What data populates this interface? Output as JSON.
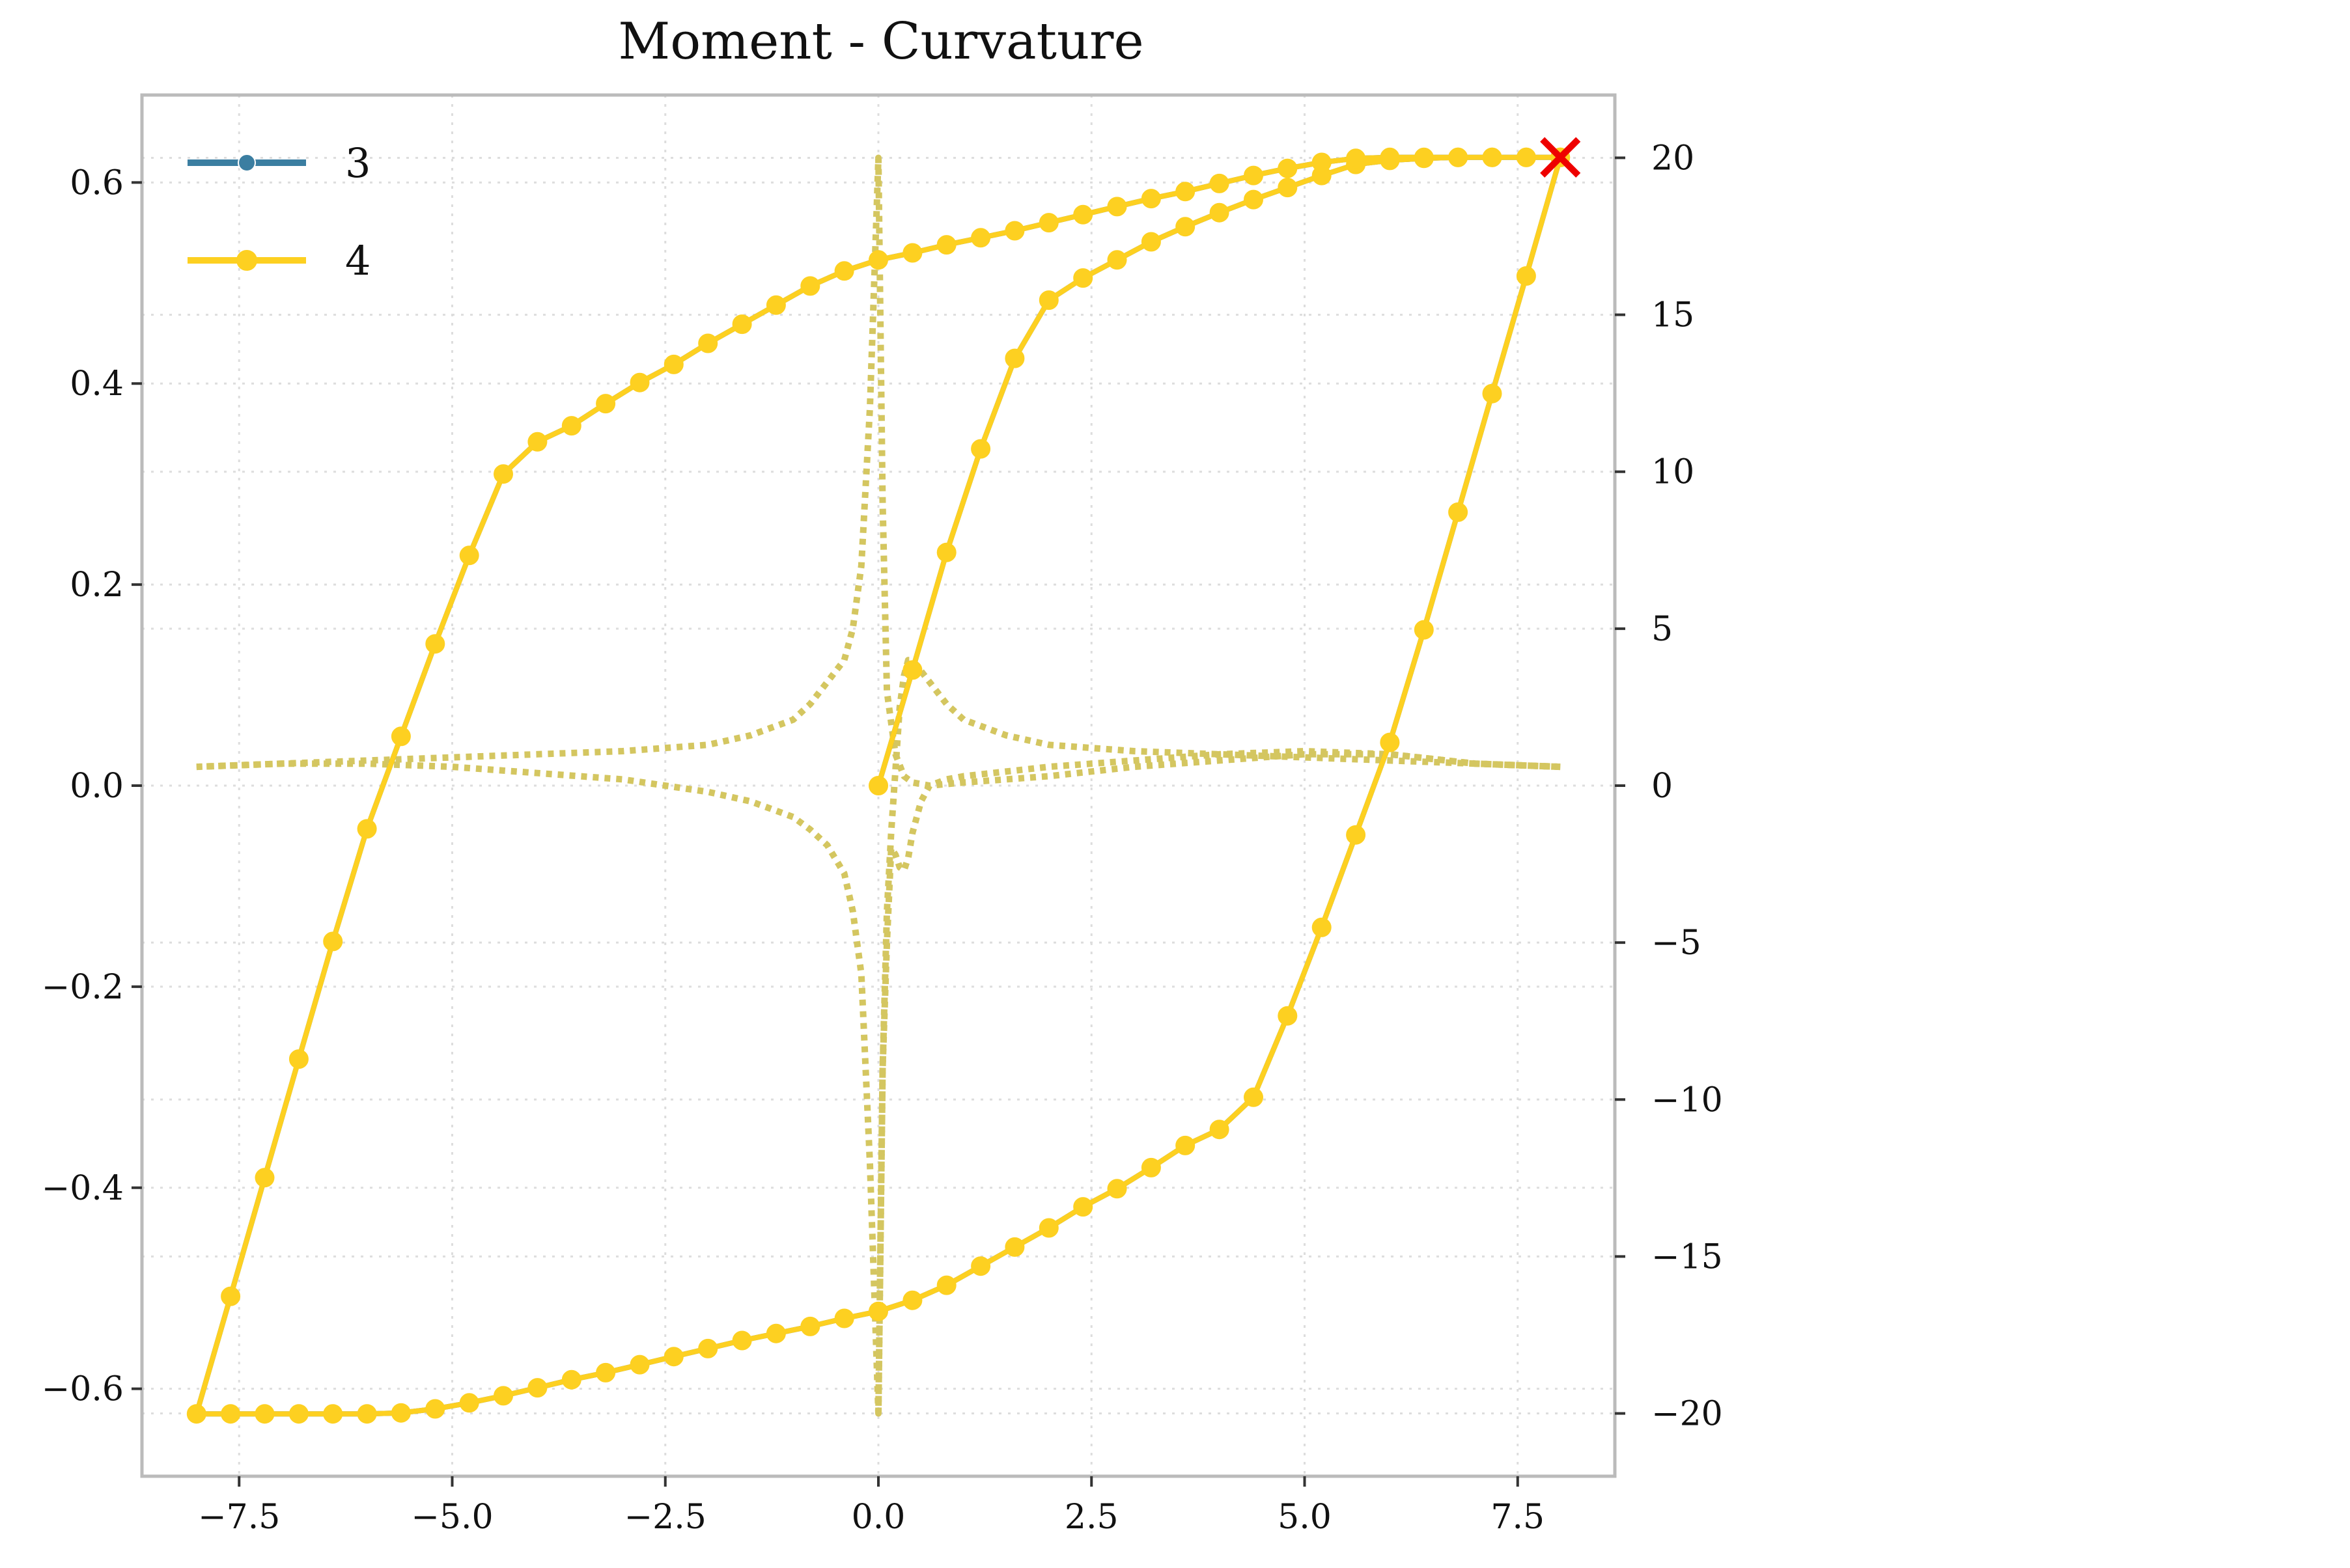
{
  "chart_data": {
    "type": "line",
    "title": "Moment - Curvature",
    "xlabel": "",
    "ylabel": "",
    "xlim": [
      -8.64,
      8.64
    ],
    "ylim": [
      -0.687,
      0.687
    ],
    "y2lim": [
      -22.0,
      22.0
    ],
    "grid": true,
    "legend_position": "top-left",
    "x_ticks": [
      -7.5,
      -5.0,
      -2.5,
      0.0,
      2.5,
      5.0,
      7.5
    ],
    "x_tick_labels": [
      "−7.5",
      "−5.0",
      "−2.5",
      "0.0",
      "2.5",
      "5.0",
      "7.5"
    ],
    "y_ticks": [
      -0.6,
      -0.4,
      -0.2,
      0.0,
      0.2,
      0.4,
      0.6
    ],
    "y_tick_labels": [
      "−0.6",
      "−0.4",
      "−0.2",
      "0.0",
      "0.2",
      "0.4",
      "0.6"
    ],
    "y2_ticks": [
      -20,
      -15,
      -10,
      -5,
      0,
      5,
      10,
      15,
      20
    ],
    "y2_tick_labels": [
      "−20",
      "−15",
      "−10",
      "−5",
      "0",
      "5",
      "10",
      "15",
      "20"
    ],
    "colors": {
      "series_3": "#3b7ea1",
      "series_4": "#fdd021",
      "secondary": "#d4c660",
      "end_marker": "#ee0000",
      "axes": "#bbbbbb",
      "grid": "#dddddd"
    },
    "series": [
      {
        "name": "3",
        "axis": "left",
        "style": "solid-markers",
        "x": [
          0.0,
          0.4,
          0.8,
          1.2,
          1.6,
          2.0,
          2.4,
          2.8,
          3.2,
          3.6,
          4.0,
          4.4,
          4.8,
          5.2,
          5.6,
          6.0,
          6.4,
          6.8,
          7.2,
          7.6,
          8.0,
          7.6,
          7.2,
          6.8,
          6.4,
          6.0,
          5.6,
          5.2,
          4.8,
          4.4,
          4.0,
          3.6,
          3.2,
          2.8,
          2.4,
          2.0,
          1.6,
          1.2,
          0.8,
          0.4,
          0.0,
          -0.4,
          -0.8,
          -1.2,
          -1.6,
          -2.0,
          -2.4,
          -2.8,
          -3.2,
          -3.6,
          -4.0,
          -4.4,
          -4.8,
          -5.2,
          -5.6,
          -6.0,
          -6.4,
          -6.8,
          -7.2,
          -7.6,
          -8.0,
          -7.6,
          -7.2,
          -6.8,
          -6.4,
          -6.0,
          -5.6,
          -5.2,
          -4.8,
          -4.4,
          -4.0,
          -3.6,
          -3.2,
          -2.8,
          -2.4,
          -2.0,
          -1.6,
          -1.2,
          -0.8,
          -0.4,
          0.0,
          0.4,
          0.8,
          1.2,
          1.6,
          2.0,
          2.4,
          2.8,
          3.2,
          3.6,
          4.0,
          4.4,
          4.8,
          5.2,
          5.6,
          6.0,
          6.4,
          6.8,
          7.2,
          7.6,
          8.0
        ],
        "y": [
          0.0,
          0.115,
          0.232,
          0.335,
          0.425,
          0.483,
          0.505,
          0.523,
          0.541,
          0.556,
          0.57,
          0.583,
          0.595,
          0.607,
          0.618,
          0.622,
          0.624,
          0.625,
          0.625,
          0.625,
          0.625,
          0.507,
          0.39,
          0.272,
          0.155,
          0.043,
          -0.049,
          -0.141,
          -0.229,
          -0.31,
          -0.342,
          -0.358,
          -0.38,
          -0.401,
          -0.419,
          -0.44,
          -0.459,
          -0.478,
          -0.497,
          -0.512,
          -0.523,
          -0.53,
          -0.538,
          -0.545,
          -0.552,
          -0.56,
          -0.568,
          -0.576,
          -0.584,
          -0.591,
          -0.599,
          -0.607,
          -0.614,
          -0.62,
          -0.624,
          -0.625,
          -0.625,
          -0.625,
          -0.625,
          -0.625,
          -0.625,
          -0.508,
          -0.39,
          -0.272,
          -0.155,
          -0.043,
          0.049,
          0.141,
          0.229,
          0.31,
          0.342,
          0.358,
          0.38,
          0.401,
          0.419,
          0.44,
          0.459,
          0.478,
          0.497,
          0.512,
          0.523,
          0.53,
          0.538,
          0.545,
          0.552,
          0.56,
          0.568,
          0.576,
          0.584,
          0.591,
          0.599,
          0.607,
          0.614,
          0.62,
          0.624,
          0.625,
          0.625,
          0.625,
          0.625,
          0.625,
          0.625
        ]
      },
      {
        "name": "4",
        "axis": "left",
        "style": "solid-markers",
        "x": [
          0.0,
          0.4,
          0.8,
          1.2,
          1.6,
          2.0,
          2.4,
          2.8,
          3.2,
          3.6,
          4.0,
          4.4,
          4.8,
          5.2,
          5.6,
          6.0,
          6.4,
          6.8,
          7.2,
          7.6,
          8.0,
          7.6,
          7.2,
          6.8,
          6.4,
          6.0,
          5.6,
          5.2,
          4.8,
          4.4,
          4.0,
          3.6,
          3.2,
          2.8,
          2.4,
          2.0,
          1.6,
          1.2,
          0.8,
          0.4,
          0.0,
          -0.4,
          -0.8,
          -1.2,
          -1.6,
          -2.0,
          -2.4,
          -2.8,
          -3.2,
          -3.6,
          -4.0,
          -4.4,
          -4.8,
          -5.2,
          -5.6,
          -6.0,
          -6.4,
          -6.8,
          -7.2,
          -7.6,
          -8.0,
          -7.6,
          -7.2,
          -6.8,
          -6.4,
          -6.0,
          -5.6,
          -5.2,
          -4.8,
          -4.4,
          -4.0,
          -3.6,
          -3.2,
          -2.8,
          -2.4,
          -2.0,
          -1.6,
          -1.2,
          -0.8,
          -0.4,
          0.0,
          0.4,
          0.8,
          1.2,
          1.6,
          2.0,
          2.4,
          2.8,
          3.2,
          3.6,
          4.0,
          4.4,
          4.8,
          5.2,
          5.6,
          6.0,
          6.4,
          6.8,
          7.2,
          7.6,
          8.0
        ],
        "y": [
          0.0,
          0.115,
          0.232,
          0.335,
          0.425,
          0.483,
          0.505,
          0.523,
          0.541,
          0.556,
          0.57,
          0.583,
          0.595,
          0.607,
          0.618,
          0.622,
          0.624,
          0.625,
          0.625,
          0.625,
          0.625,
          0.507,
          0.39,
          0.272,
          0.155,
          0.043,
          -0.049,
          -0.141,
          -0.229,
          -0.31,
          -0.342,
          -0.358,
          -0.38,
          -0.401,
          -0.419,
          -0.44,
          -0.459,
          -0.478,
          -0.497,
          -0.512,
          -0.523,
          -0.53,
          -0.538,
          -0.545,
          -0.552,
          -0.56,
          -0.568,
          -0.576,
          -0.584,
          -0.591,
          -0.599,
          -0.607,
          -0.614,
          -0.62,
          -0.624,
          -0.625,
          -0.625,
          -0.625,
          -0.625,
          -0.625,
          -0.625,
          -0.508,
          -0.39,
          -0.272,
          -0.155,
          -0.043,
          0.049,
          0.141,
          0.229,
          0.31,
          0.342,
          0.358,
          0.38,
          0.401,
          0.419,
          0.44,
          0.459,
          0.478,
          0.497,
          0.512,
          0.523,
          0.53,
          0.538,
          0.545,
          0.552,
          0.56,
          0.568,
          0.576,
          0.584,
          0.591,
          0.599,
          0.607,
          0.614,
          0.62,
          0.624,
          0.625,
          0.625,
          0.625,
          0.625,
          0.625,
          0.625
        ]
      },
      {
        "name": "",
        "axis": "right",
        "style": "dotted",
        "segments": [
          {
            "x": [
              0.0,
              0.05,
              0.1,
              0.15,
              0.2,
              0.25,
              0.3,
              0.35,
              0.4,
              0.6,
              0.8,
              1.0,
              1.5,
              2.0,
              3.0,
              4.0,
              5.0,
              6.0,
              7.0,
              8.0
            ],
            "y": [
              -20.0,
              -9.0,
              -4.0,
              -1.5,
              0.5,
              2.5,
              3.5,
              4.0,
              4.0,
              3.3,
              2.6,
              2.1,
              1.6,
              1.3,
              1.1,
              1.0,
              0.9,
              0.8,
              0.7,
              0.6
            ]
          },
          {
            "x": [
              8.0,
              7.0,
              6.0,
              5.0,
              4.0,
              3.0,
              2.0,
              1.0,
              0.8,
              0.6,
              0.5,
              0.4,
              0.35,
              0.3,
              0.25,
              0.2,
              0.15,
              0.1,
              0.05,
              0.0,
              -0.05,
              -0.1,
              -0.2,
              -0.3,
              -0.4,
              -0.6,
              -0.8,
              -1.0,
              -1.5,
              -2.0,
              -3.0,
              -4.0,
              -5.0,
              -6.0,
              -7.0,
              -8.0
            ],
            "y": [
              0.6,
              0.7,
              1.0,
              1.1,
              1.0,
              0.8,
              0.6,
              0.3,
              0.2,
              0.0,
              -0.5,
              -1.5,
              -2.3,
              -2.7,
              -2.6,
              -2.2,
              -2.0,
              -5.0,
              -9.0,
              -20.0,
              -16.0,
              -12.0,
              -6.0,
              -4.0,
              -2.8,
              -1.9,
              -1.4,
              -1.0,
              -0.5,
              -0.2,
              0.2,
              0.4,
              0.6,
              0.7,
              0.7,
              0.6
            ]
          },
          {
            "x": [
              -8.0,
              -7.0,
              -6.0,
              -5.0,
              -4.0,
              -3.0,
              -2.0,
              -1.5,
              -1.0,
              -0.8,
              -0.6,
              -0.4,
              -0.3,
              -0.2,
              -0.1,
              -0.05,
              0.0,
              0.05,
              0.1,
              0.2,
              0.3,
              0.4,
              0.6,
              1.0,
              2.0,
              3.0,
              4.0,
              5.0,
              6.0,
              7.0,
              8.0
            ],
            "y": [
              0.6,
              0.7,
              0.8,
              0.9,
              1.0,
              1.1,
              1.3,
              1.6,
              2.1,
              2.6,
              3.3,
              4.0,
              5.0,
              7.0,
              12.0,
              16.0,
              20.0,
              9.0,
              3.0,
              1.0,
              0.3,
              0.1,
              0.0,
              0.1,
              0.3,
              0.6,
              0.8,
              1.0,
              1.0,
              0.7,
              0.6
            ]
          }
        ]
      }
    ],
    "end_marker": {
      "x": 8.0,
      "y": 0.625,
      "symbol": "x"
    }
  }
}
